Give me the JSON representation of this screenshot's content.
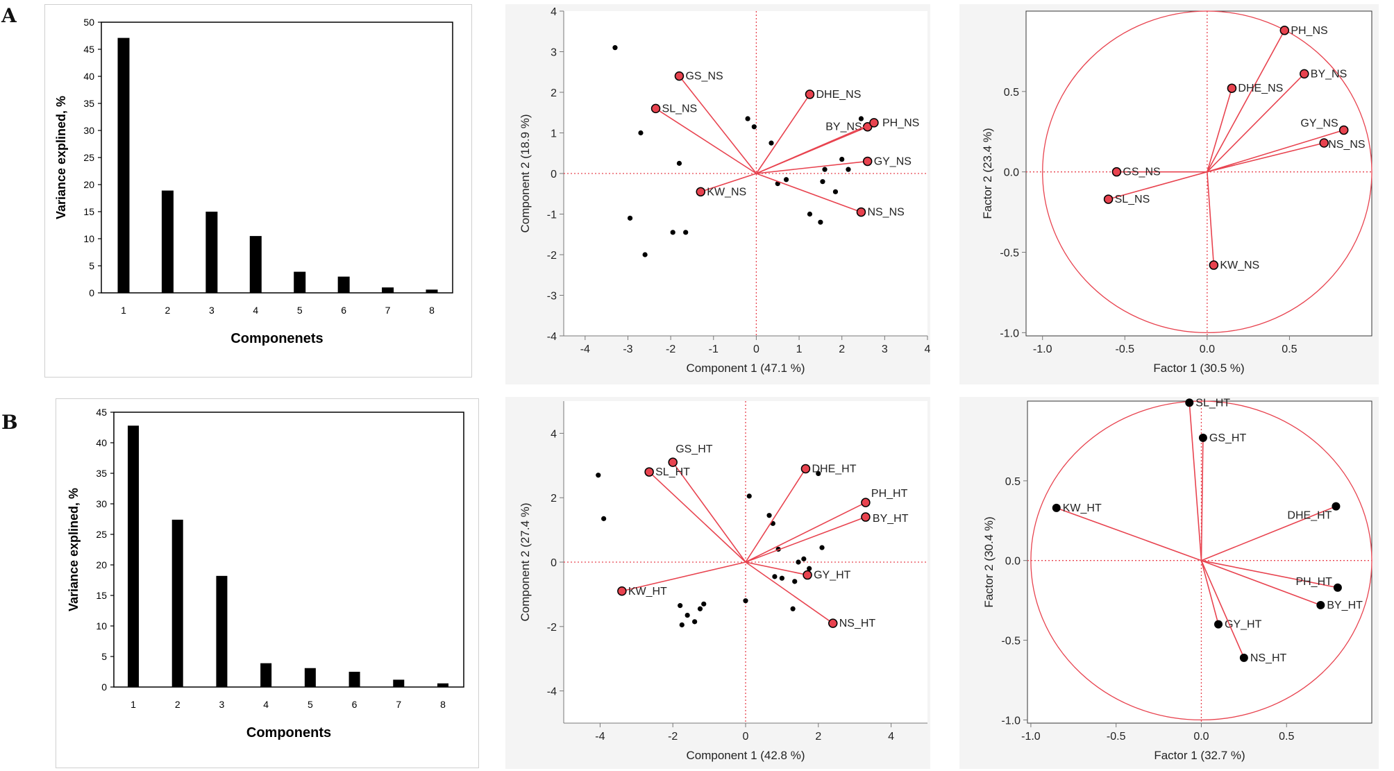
{
  "panels": {
    "A_label": "A",
    "B_label": "B"
  },
  "colors": {
    "bar": "#000000",
    "vector": "#e8434f",
    "point_red": "#e8434f",
    "dash": "#e8434f",
    "axis": "#666666",
    "jmp_bg": "#f4f4f4"
  },
  "chart_data": [
    {
      "id": "A_scree",
      "type": "bar",
      "ylabel": "Variance explined, %",
      "xlabel": "Componenets",
      "categories": [
        "1",
        "2",
        "3",
        "4",
        "5",
        "6",
        "7",
        "8"
      ],
      "values": [
        47.1,
        18.9,
        15.0,
        10.5,
        3.9,
        3.0,
        1.0,
        0.6
      ],
      "ylim": [
        0,
        50
      ],
      "yticks": [
        "0",
        "5",
        "10",
        "15",
        "20",
        "25",
        "30",
        "35",
        "40",
        "45",
        "50"
      ]
    },
    {
      "id": "A_biplot",
      "type": "scatter",
      "xlabel": "Component 1  (47.1 %)",
      "ylabel": "Component 2  (18.9 %)",
      "xlim": [
        -4.5,
        4
      ],
      "ylim": [
        -4,
        4
      ],
      "xticks": [
        "-4",
        "-3",
        "-2",
        "-1",
        "0",
        "1",
        "2",
        "3",
        "4"
      ],
      "yticks": [
        "-4",
        "-3",
        "-2",
        "-1",
        "0",
        "1",
        "2",
        "3",
        "4"
      ],
      "points": [
        [
          -3.3,
          3.1
        ],
        [
          -2.7,
          1.0
        ],
        [
          -1.8,
          0.25
        ],
        [
          -2.95,
          -1.1
        ],
        [
          -1.95,
          -1.45
        ],
        [
          -1.65,
          -1.45
        ],
        [
          -2.6,
          -2.0
        ],
        [
          -0.2,
          1.35
        ],
        [
          -0.05,
          1.15
        ],
        [
          0.35,
          0.75
        ],
        [
          0.5,
          -0.25
        ],
        [
          0.7,
          -0.15
        ],
        [
          1.25,
          -1.0
        ],
        [
          1.5,
          -1.2
        ],
        [
          1.6,
          0.1
        ],
        [
          1.55,
          -0.2
        ],
        [
          1.85,
          -0.45
        ],
        [
          2.0,
          0.35
        ],
        [
          2.15,
          0.1
        ],
        [
          2.45,
          1.35
        ]
      ],
      "vectors": [
        {
          "label": "GS_NS",
          "x": -1.8,
          "y": 2.4
        },
        {
          "label": "SL_NS",
          "x": -2.35,
          "y": 1.6
        },
        {
          "label": "DHE_NS",
          "x": 1.25,
          "y": 1.95
        },
        {
          "label": "BY_NS",
          "x": 2.6,
          "y": 1.15
        },
        {
          "label": "PH_NS",
          "x": 2.75,
          "y": 1.25
        },
        {
          "label": "GY_NS",
          "x": 2.6,
          "y": 0.3
        },
        {
          "label": "NS_NS",
          "x": 2.45,
          "y": -0.95
        },
        {
          "label": "KW_NS",
          "x": -1.3,
          "y": -0.45
        }
      ]
    },
    {
      "id": "A_loading",
      "type": "scatter",
      "xlabel": "Factor 1  (30.5 %)",
      "ylabel": "Factor 2  (23.4 %)",
      "xlim": [
        -1.1,
        1.0
      ],
      "ylim": [
        -1.02,
        1.0
      ],
      "xticks": [
        "-1.0",
        "-0.5",
        "0.0",
        "0.5"
      ],
      "yticks": [
        "-1.0",
        "-0.5",
        "0.0",
        "0.5"
      ],
      "vectors": [
        {
          "label": "PH_NS",
          "x": 0.47,
          "y": 0.88
        },
        {
          "label": "DHE_NS",
          "x": 0.15,
          "y": 0.52
        },
        {
          "label": "BY_NS",
          "x": 0.59,
          "y": 0.61
        },
        {
          "label": "GY_NS",
          "x": 0.83,
          "y": 0.26
        },
        {
          "label": "NS_NS",
          "x": 0.71,
          "y": 0.18
        },
        {
          "label": "GS_NS",
          "x": -0.55,
          "y": 0.0
        },
        {
          "label": "SL_NS",
          "x": -0.6,
          "y": -0.17
        },
        {
          "label": "KW_NS",
          "x": 0.04,
          "y": -0.58
        }
      ]
    },
    {
      "id": "B_scree",
      "type": "bar",
      "ylabel": "Variance explined, %",
      "xlabel": "Components",
      "categories": [
        "1",
        "2",
        "3",
        "4",
        "5",
        "6",
        "7",
        "8"
      ],
      "values": [
        42.8,
        27.4,
        18.2,
        3.9,
        3.1,
        2.5,
        1.2,
        0.6
      ],
      "ylim": [
        0,
        45
      ],
      "yticks": [
        "0",
        "5",
        "10",
        "15",
        "20",
        "25",
        "30",
        "35",
        "40",
        "45"
      ]
    },
    {
      "id": "B_biplot",
      "type": "scatter",
      "xlabel": "Component 1  (42.8 %)",
      "ylabel": "Component 2  (27.4 %)",
      "xlim": [
        -5,
        5
      ],
      "ylim": [
        -5,
        5
      ],
      "xticks": [
        "-4",
        "-2",
        "0",
        "2",
        "4"
      ],
      "yticks": [
        "-4",
        "-2",
        "0",
        "2",
        "4"
      ],
      "points": [
        [
          -4.05,
          2.7
        ],
        [
          -3.9,
          1.35
        ],
        [
          -1.8,
          -1.35
        ],
        [
          -1.6,
          -1.65
        ],
        [
          -1.25,
          -1.45
        ],
        [
          -1.15,
          -1.3
        ],
        [
          -1.75,
          -1.95
        ],
        [
          -1.4,
          -1.85
        ],
        [
          0.1,
          2.05
        ],
        [
          0.65,
          1.45
        ],
        [
          0.75,
          1.2
        ],
        [
          0.9,
          0.4
        ],
        [
          0.8,
          -0.45
        ],
        [
          1.0,
          -0.5
        ],
        [
          1.35,
          -0.6
        ],
        [
          1.45,
          0.0
        ],
        [
          1.6,
          0.1
        ],
        [
          1.75,
          -0.2
        ],
        [
          2.1,
          0.45
        ],
        [
          1.3,
          -1.45
        ],
        [
          0.0,
          -1.2
        ],
        [
          2.0,
          2.75
        ]
      ],
      "vectors": [
        {
          "label": "GS_HT",
          "x": -2.0,
          "y": 3.1
        },
        {
          "label": "SL_HT",
          "x": -2.65,
          "y": 2.8
        },
        {
          "label": "DHE_HT",
          "x": 1.65,
          "y": 2.9
        },
        {
          "label": "PH_HT",
          "x": 3.3,
          "y": 1.85
        },
        {
          "label": "BY_HT",
          "x": 3.3,
          "y": 1.4
        },
        {
          "label": "GY_HT",
          "x": 1.7,
          "y": -0.4
        },
        {
          "label": "NS_HT",
          "x": 2.4,
          "y": -1.9
        },
        {
          "label": "KW_HT",
          "x": -3.4,
          "y": -0.9
        }
      ]
    },
    {
      "id": "B_loading",
      "type": "scatter",
      "xlabel": "Factor 1  (32.7 %)",
      "ylabel": "Factor 2  (30.4 %)",
      "xlim": [
        -1.02,
        1.0
      ],
      "ylim": [
        -1.02,
        1.0
      ],
      "xticks": [
        "-1.0",
        "-0.5",
        "0.0",
        "0.5"
      ],
      "yticks": [
        "-1.0",
        "-0.5",
        "0.0",
        "0.5"
      ],
      "vectors": [
        {
          "label": "SL_HT",
          "x": -0.07,
          "y": 0.99
        },
        {
          "label": "GS_HT",
          "x": 0.01,
          "y": 0.77
        },
        {
          "label": "KW_HT",
          "x": -0.85,
          "y": 0.33
        },
        {
          "label": "DHE_HT",
          "x": 0.79,
          "y": 0.34
        },
        {
          "label": "PH_HT",
          "x": 0.8,
          "y": -0.17
        },
        {
          "label": "BY_HT",
          "x": 0.7,
          "y": -0.28
        },
        {
          "label": "GY_HT",
          "x": 0.1,
          "y": -0.4
        },
        {
          "label": "NS_HT",
          "x": 0.25,
          "y": -0.61
        }
      ]
    }
  ]
}
